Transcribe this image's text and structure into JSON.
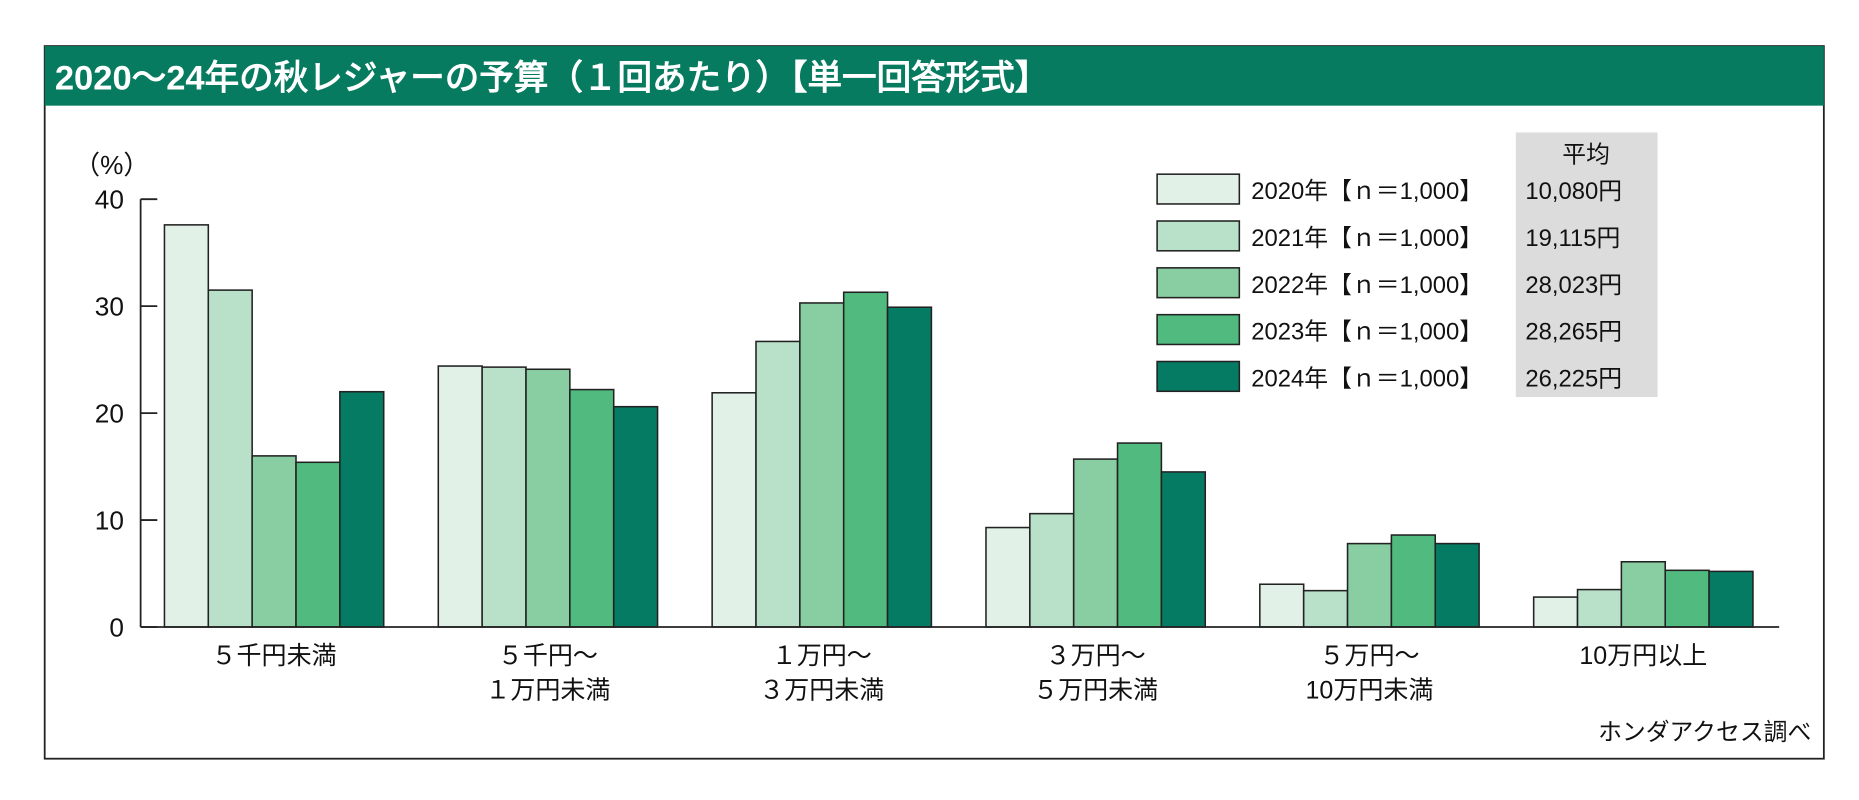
{
  "chart_data": {
    "type": "bar",
    "title": "2020～24年の秋レジャーの予算（１回あたり）【単一回答形式】",
    "ylabel": "（%）",
    "xlabel": "",
    "ylim": [
      0,
      40
    ],
    "yticks": [
      "0",
      "10",
      "20",
      "30",
      "40"
    ],
    "categories": [
      [
        "５千円未満"
      ],
      [
        "５千円～",
        "１万円未満"
      ],
      [
        "１万円～",
        "３万円未満"
      ],
      [
        "３万円～",
        "５万円未満"
      ],
      [
        "５万円～",
        "10万円未満"
      ],
      [
        "10万円以上"
      ]
    ],
    "series": [
      {
        "name": "2020年【ｎ＝1,000】",
        "average": "10,080円",
        "color": "#e1f1e7",
        "values": [
          37.6,
          24.4,
          21.9,
          9.3,
          4.0,
          2.8
        ]
      },
      {
        "name": "2021年【ｎ＝1,000】",
        "average": "19,115円",
        "color": "#b9e0c9",
        "values": [
          31.5,
          24.3,
          26.7,
          10.6,
          3.4,
          3.5
        ]
      },
      {
        "name": "2022年【ｎ＝1,000】",
        "average": "28,023円",
        "color": "#89cea2",
        "values": [
          16.0,
          24.1,
          30.3,
          15.7,
          7.8,
          6.1
        ]
      },
      {
        "name": "2023年【ｎ＝1,000】",
        "average": "28,265円",
        "color": "#50ba7f",
        "values": [
          15.4,
          22.2,
          31.3,
          17.2,
          8.6,
          5.3
        ]
      },
      {
        "name": "2024年【ｎ＝1,000】",
        "average": "26,225円",
        "color": "#067b63",
        "values": [
          22.0,
          20.6,
          29.9,
          14.5,
          7.8,
          5.2
        ]
      }
    ],
    "legend_average_header": "平均",
    "legend_placement": "top-right",
    "grid": false,
    "source": "ホンダアクセス調べ"
  },
  "colors": {
    "title_bar": "#067b5f",
    "average_box": "#dcdcdc"
  }
}
